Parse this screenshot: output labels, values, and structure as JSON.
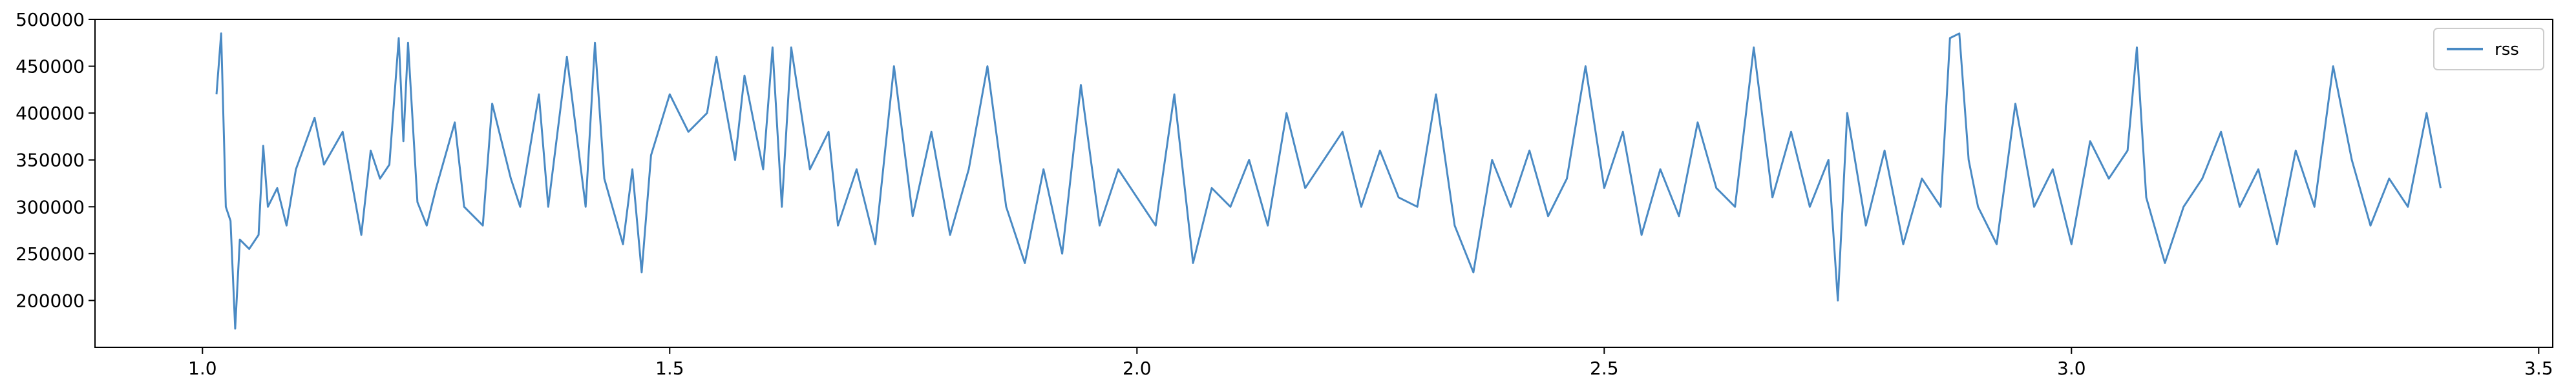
{
  "chart_data": {
    "type": "line",
    "title": "",
    "xlabel": "",
    "ylabel": "",
    "xlim": [
      0.885,
      3.515
    ],
    "ylim": [
      150000,
      500000
    ],
    "x_ticks": [
      1.0,
      1.5,
      2.0,
      2.5,
      3.0,
      3.5
    ],
    "x_tick_labels": [
      "1.0",
      "1.5",
      "2.0",
      "2.5",
      "3.0",
      "3.5"
    ],
    "y_ticks": [
      200000,
      250000,
      300000,
      350000,
      400000,
      450000,
      500000
    ],
    "y_tick_labels": [
      "200000",
      "250000",
      "300000",
      "350000",
      "400000",
      "450000",
      "500000"
    ],
    "grid": false,
    "legend": {
      "placement": "top-right",
      "entries": [
        "rss"
      ]
    },
    "series": [
      {
        "name": "rss",
        "color": "#4a8ac4",
        "points": [
          [
            1.015,
            420000
          ],
          [
            1.02,
            485000
          ],
          [
            1.025,
            300000
          ],
          [
            1.03,
            285000
          ],
          [
            1.035,
            170000
          ],
          [
            1.04,
            265000
          ],
          [
            1.05,
            255000
          ],
          [
            1.06,
            270000
          ],
          [
            1.065,
            365000
          ],
          [
            1.07,
            300000
          ],
          [
            1.08,
            320000
          ],
          [
            1.09,
            280000
          ],
          [
            1.1,
            340000
          ],
          [
            1.12,
            395000
          ],
          [
            1.13,
            345000
          ],
          [
            1.15,
            380000
          ],
          [
            1.17,
            270000
          ],
          [
            1.18,
            360000
          ],
          [
            1.19,
            330000
          ],
          [
            1.2,
            345000
          ],
          [
            1.21,
            480000
          ],
          [
            1.215,
            370000
          ],
          [
            1.22,
            475000
          ],
          [
            1.23,
            305000
          ],
          [
            1.24,
            280000
          ],
          [
            1.25,
            320000
          ],
          [
            1.27,
            390000
          ],
          [
            1.28,
            300000
          ],
          [
            1.3,
            280000
          ],
          [
            1.31,
            410000
          ],
          [
            1.33,
            330000
          ],
          [
            1.34,
            300000
          ],
          [
            1.36,
            420000
          ],
          [
            1.37,
            300000
          ],
          [
            1.39,
            460000
          ],
          [
            1.41,
            300000
          ],
          [
            1.42,
            475000
          ],
          [
            1.43,
            330000
          ],
          [
            1.45,
            260000
          ],
          [
            1.46,
            340000
          ],
          [
            1.47,
            230000
          ],
          [
            1.48,
            355000
          ],
          [
            1.5,
            420000
          ],
          [
            1.52,
            380000
          ],
          [
            1.54,
            400000
          ],
          [
            1.55,
            460000
          ],
          [
            1.57,
            350000
          ],
          [
            1.58,
            440000
          ],
          [
            1.6,
            340000
          ],
          [
            1.61,
            470000
          ],
          [
            1.62,
            300000
          ],
          [
            1.63,
            470000
          ],
          [
            1.65,
            340000
          ],
          [
            1.67,
            380000
          ],
          [
            1.68,
            280000
          ],
          [
            1.7,
            340000
          ],
          [
            1.72,
            260000
          ],
          [
            1.74,
            450000
          ],
          [
            1.76,
            290000
          ],
          [
            1.78,
            380000
          ],
          [
            1.8,
            270000
          ],
          [
            1.82,
            340000
          ],
          [
            1.84,
            450000
          ],
          [
            1.86,
            300000
          ],
          [
            1.88,
            240000
          ],
          [
            1.9,
            340000
          ],
          [
            1.92,
            250000
          ],
          [
            1.94,
            430000
          ],
          [
            1.96,
            280000
          ],
          [
            1.98,
            340000
          ],
          [
            2.0,
            310000
          ],
          [
            2.02,
            280000
          ],
          [
            2.04,
            420000
          ],
          [
            2.06,
            240000
          ],
          [
            2.08,
            320000
          ],
          [
            2.1,
            300000
          ],
          [
            2.12,
            350000
          ],
          [
            2.14,
            280000
          ],
          [
            2.16,
            400000
          ],
          [
            2.18,
            320000
          ],
          [
            2.2,
            350000
          ],
          [
            2.22,
            380000
          ],
          [
            2.24,
            300000
          ],
          [
            2.26,
            360000
          ],
          [
            2.28,
            310000
          ],
          [
            2.3,
            300000
          ],
          [
            2.32,
            420000
          ],
          [
            2.34,
            280000
          ],
          [
            2.36,
            230000
          ],
          [
            2.38,
            350000
          ],
          [
            2.4,
            300000
          ],
          [
            2.42,
            360000
          ],
          [
            2.44,
            290000
          ],
          [
            2.46,
            330000
          ],
          [
            2.48,
            450000
          ],
          [
            2.5,
            320000
          ],
          [
            2.52,
            380000
          ],
          [
            2.54,
            270000
          ],
          [
            2.56,
            340000
          ],
          [
            2.58,
            290000
          ],
          [
            2.6,
            390000
          ],
          [
            2.62,
            320000
          ],
          [
            2.64,
            300000
          ],
          [
            2.66,
            470000
          ],
          [
            2.68,
            310000
          ],
          [
            2.7,
            380000
          ],
          [
            2.72,
            300000
          ],
          [
            2.74,
            350000
          ],
          [
            2.75,
            200000
          ],
          [
            2.76,
            400000
          ],
          [
            2.78,
            280000
          ],
          [
            2.8,
            360000
          ],
          [
            2.82,
            260000
          ],
          [
            2.84,
            330000
          ],
          [
            2.86,
            300000
          ],
          [
            2.87,
            480000
          ],
          [
            2.88,
            485000
          ],
          [
            2.89,
            350000
          ],
          [
            2.9,
            300000
          ],
          [
            2.92,
            260000
          ],
          [
            2.94,
            410000
          ],
          [
            2.96,
            300000
          ],
          [
            2.98,
            340000
          ],
          [
            3.0,
            260000
          ],
          [
            3.02,
            370000
          ],
          [
            3.04,
            330000
          ],
          [
            3.06,
            360000
          ],
          [
            3.07,
            470000
          ],
          [
            3.08,
            310000
          ],
          [
            3.1,
            240000
          ],
          [
            3.12,
            300000
          ],
          [
            3.14,
            330000
          ],
          [
            3.16,
            380000
          ],
          [
            3.18,
            300000
          ],
          [
            3.2,
            340000
          ],
          [
            3.22,
            260000
          ],
          [
            3.24,
            360000
          ],
          [
            3.26,
            300000
          ],
          [
            3.28,
            450000
          ],
          [
            3.3,
            350000
          ],
          [
            3.32,
            280000
          ],
          [
            3.34,
            330000
          ],
          [
            3.36,
            300000
          ],
          [
            3.38,
            400000
          ],
          [
            3.395,
            320000
          ]
        ]
      }
    ]
  }
}
